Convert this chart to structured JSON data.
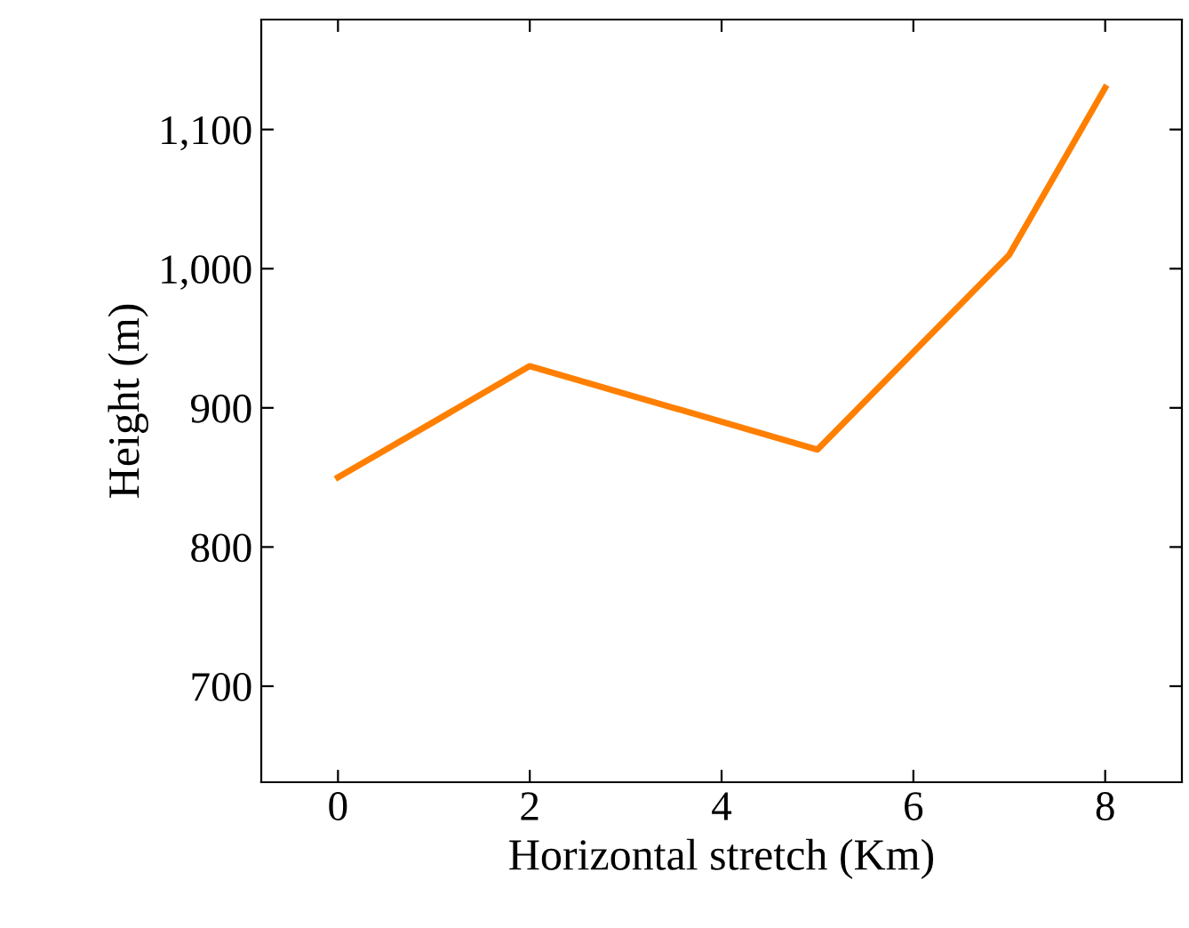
{
  "chart_data": {
    "type": "line",
    "xlabel": "Horizontal stretch (Km)",
    "ylabel": "Height (m)",
    "x": [
      0,
      2,
      5,
      7,
      8
    ],
    "series": [
      {
        "color": "#ff7f00",
        "values": [
          850,
          930,
          870,
          1010,
          1130
        ]
      }
    ],
    "xlim": [
      -0.8,
      8.8
    ],
    "ylim": [
      631,
      1179
    ],
    "xticks": [
      0,
      2,
      4,
      6,
      8
    ],
    "yticks": [
      700,
      800,
      900,
      {
        "value": 1000,
        "label": "1,000"
      },
      {
        "value": 1100,
        "label": "1,100"
      }
    ],
    "grid": false,
    "legend": false,
    "marker": "none",
    "line_style": "solid"
  }
}
